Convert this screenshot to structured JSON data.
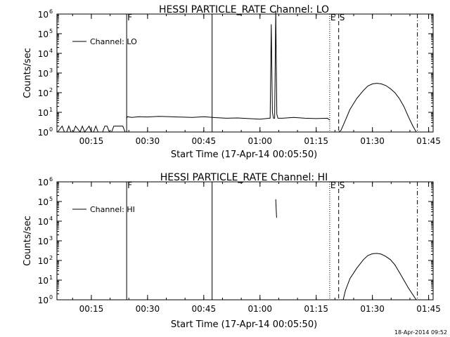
{
  "footer_timestamp": "18-Apr-2014 09:52",
  "chart_data": [
    {
      "type": "line",
      "title": "HESSI PARTICLE_RATE Channel: LO",
      "xlabel": "Start Time (17-Apr-14 00:05:50)",
      "ylabel": "Counts/sec",
      "log_y": true,
      "ylim": [
        1,
        1000000
      ],
      "xlim": [
        0.097,
        1.77
      ],
      "x_unit": "hours after 00:00",
      "xtick_labels": [
        "00:15",
        "00:30",
        "00:45",
        "01:00",
        "01:15",
        "01:30",
        "01:45"
      ],
      "xtick_values": [
        0.25,
        0.5,
        0.75,
        1.0,
        1.25,
        1.5,
        1.75
      ],
      "ytick_labels": [
        {
          "base": "10",
          "exp": "0"
        },
        {
          "base": "10",
          "exp": "1"
        },
        {
          "base": "10",
          "exp": "2"
        },
        {
          "base": "10",
          "exp": "3"
        },
        {
          "base": "10",
          "exp": "4"
        },
        {
          "base": "10",
          "exp": "5"
        },
        {
          "base": "10",
          "exp": "6"
        }
      ],
      "legend": {
        "label": "Channel: LO",
        "position": "top-left"
      },
      "markers": [
        {
          "label": "F",
          "x": 0.407,
          "style": "solid"
        },
        {
          "label": "",
          "x": 0.787,
          "style": "solid"
        },
        {
          "label": "E",
          "x": 1.31,
          "style": "dotted"
        },
        {
          "label": "S",
          "x": 1.35,
          "style": "dashed"
        },
        {
          "label": "",
          "x": 1.7,
          "style": "dashdot"
        }
      ],
      "series": [
        {
          "segments": [
            {
              "x": [
                0.1,
                0.12,
                0.13,
                0.14,
                0.15,
                0.16,
                0.17,
                0.18,
                0.2,
                0.21,
                0.22,
                0.24,
                0.25,
                0.26,
                0.27,
                0.28,
                0.3,
                0.31,
                0.32,
                0.33,
                0.34,
                0.35,
                0.36,
                0.37,
                0.38,
                0.39,
                0.4,
                0.405
              ],
              "y": [
                1,
                2,
                1,
                1,
                2,
                1,
                1,
                2,
                1,
                2,
                1,
                2,
                1,
                1,
                2,
                1,
                1,
                2,
                2,
                1,
                1,
                2,
                2,
                2,
                2,
                2,
                1,
                1
              ]
            },
            {
              "x": [
                0.407,
                0.41,
                0.43,
                0.46,
                0.5,
                0.55,
                0.6,
                0.65,
                0.7,
                0.75,
                0.8,
                0.85,
                0.9,
                0.95,
                1.0,
                1.04,
                1.045,
                1.05,
                1.055,
                1.06,
                1.065,
                1.07,
                1.075,
                1.08,
                1.1,
                1.15,
                1.2,
                1.25,
                1.3,
                1.31
              ],
              "y": [
                5,
                6,
                5.5,
                6,
                5.8,
                6.2,
                6,
                5.7,
                5.5,
                6,
                5.4,
                5,
                5.2,
                4.8,
                4.5,
                5,
                5,
                300000,
                10,
                5,
                5,
                1500000,
                8,
                5,
                5,
                5.5,
                5,
                4.8,
                5,
                4
              ]
            },
            {
              "x": [
                1.35,
                1.36,
                1.38,
                1.4,
                1.43,
                1.46,
                1.48,
                1.5,
                1.52,
                1.54,
                1.56,
                1.58,
                1.6,
                1.62,
                1.64,
                1.66,
                1.68,
                1.695
              ],
              "y": [
                1,
                1.2,
                4,
                14,
                50,
                130,
                220,
                280,
                300,
                280,
                230,
                160,
                100,
                50,
                20,
                6,
                2,
                1
              ]
            }
          ]
        }
      ]
    },
    {
      "type": "line",
      "title": "HESSI PARTICLE_RATE Channel: HI",
      "xlabel": "Start Time (17-Apr-14 00:05:50)",
      "ylabel": "Counts/sec",
      "log_y": true,
      "ylim": [
        1,
        1000000
      ],
      "xlim": [
        0.097,
        1.77
      ],
      "x_unit": "hours after 00:00",
      "xtick_labels": [
        "00:15",
        "00:30",
        "00:45",
        "01:00",
        "01:15",
        "01:30",
        "01:45"
      ],
      "xtick_values": [
        0.25,
        0.5,
        0.75,
        1.0,
        1.25,
        1.5,
        1.75
      ],
      "ytick_labels": [
        {
          "base": "10",
          "exp": "0"
        },
        {
          "base": "10",
          "exp": "1"
        },
        {
          "base": "10",
          "exp": "2"
        },
        {
          "base": "10",
          "exp": "3"
        },
        {
          "base": "10",
          "exp": "4"
        },
        {
          "base": "10",
          "exp": "5"
        },
        {
          "base": "10",
          "exp": "6"
        }
      ],
      "legend": {
        "label": "Channel: HI",
        "position": "top-left"
      },
      "markers": [
        {
          "label": "F",
          "x": 0.407,
          "style": "solid"
        },
        {
          "label": "",
          "x": 0.787,
          "style": "solid"
        },
        {
          "label": "E",
          "x": 1.31,
          "style": "dotted"
        },
        {
          "label": "S",
          "x": 1.35,
          "style": "dashed"
        },
        {
          "label": "",
          "x": 1.7,
          "style": "dashdot"
        }
      ],
      "series": [
        {
          "segments": [
            {
              "x": [
                1.07,
                1.072,
                1.074
              ],
              "y": [
                130000,
                40000,
                15000
              ]
            },
            {
              "x": [
                1.37,
                1.38,
                1.4,
                1.43,
                1.46,
                1.48,
                1.5,
                1.52,
                1.54,
                1.56,
                1.58,
                1.6,
                1.62,
                1.64,
                1.66,
                1.68,
                1.695
              ],
              "y": [
                1,
                3,
                12,
                40,
                110,
                180,
                220,
                230,
                210,
                160,
                110,
                60,
                25,
                10,
                4,
                1.8,
                1
              ]
            }
          ]
        }
      ]
    }
  ]
}
